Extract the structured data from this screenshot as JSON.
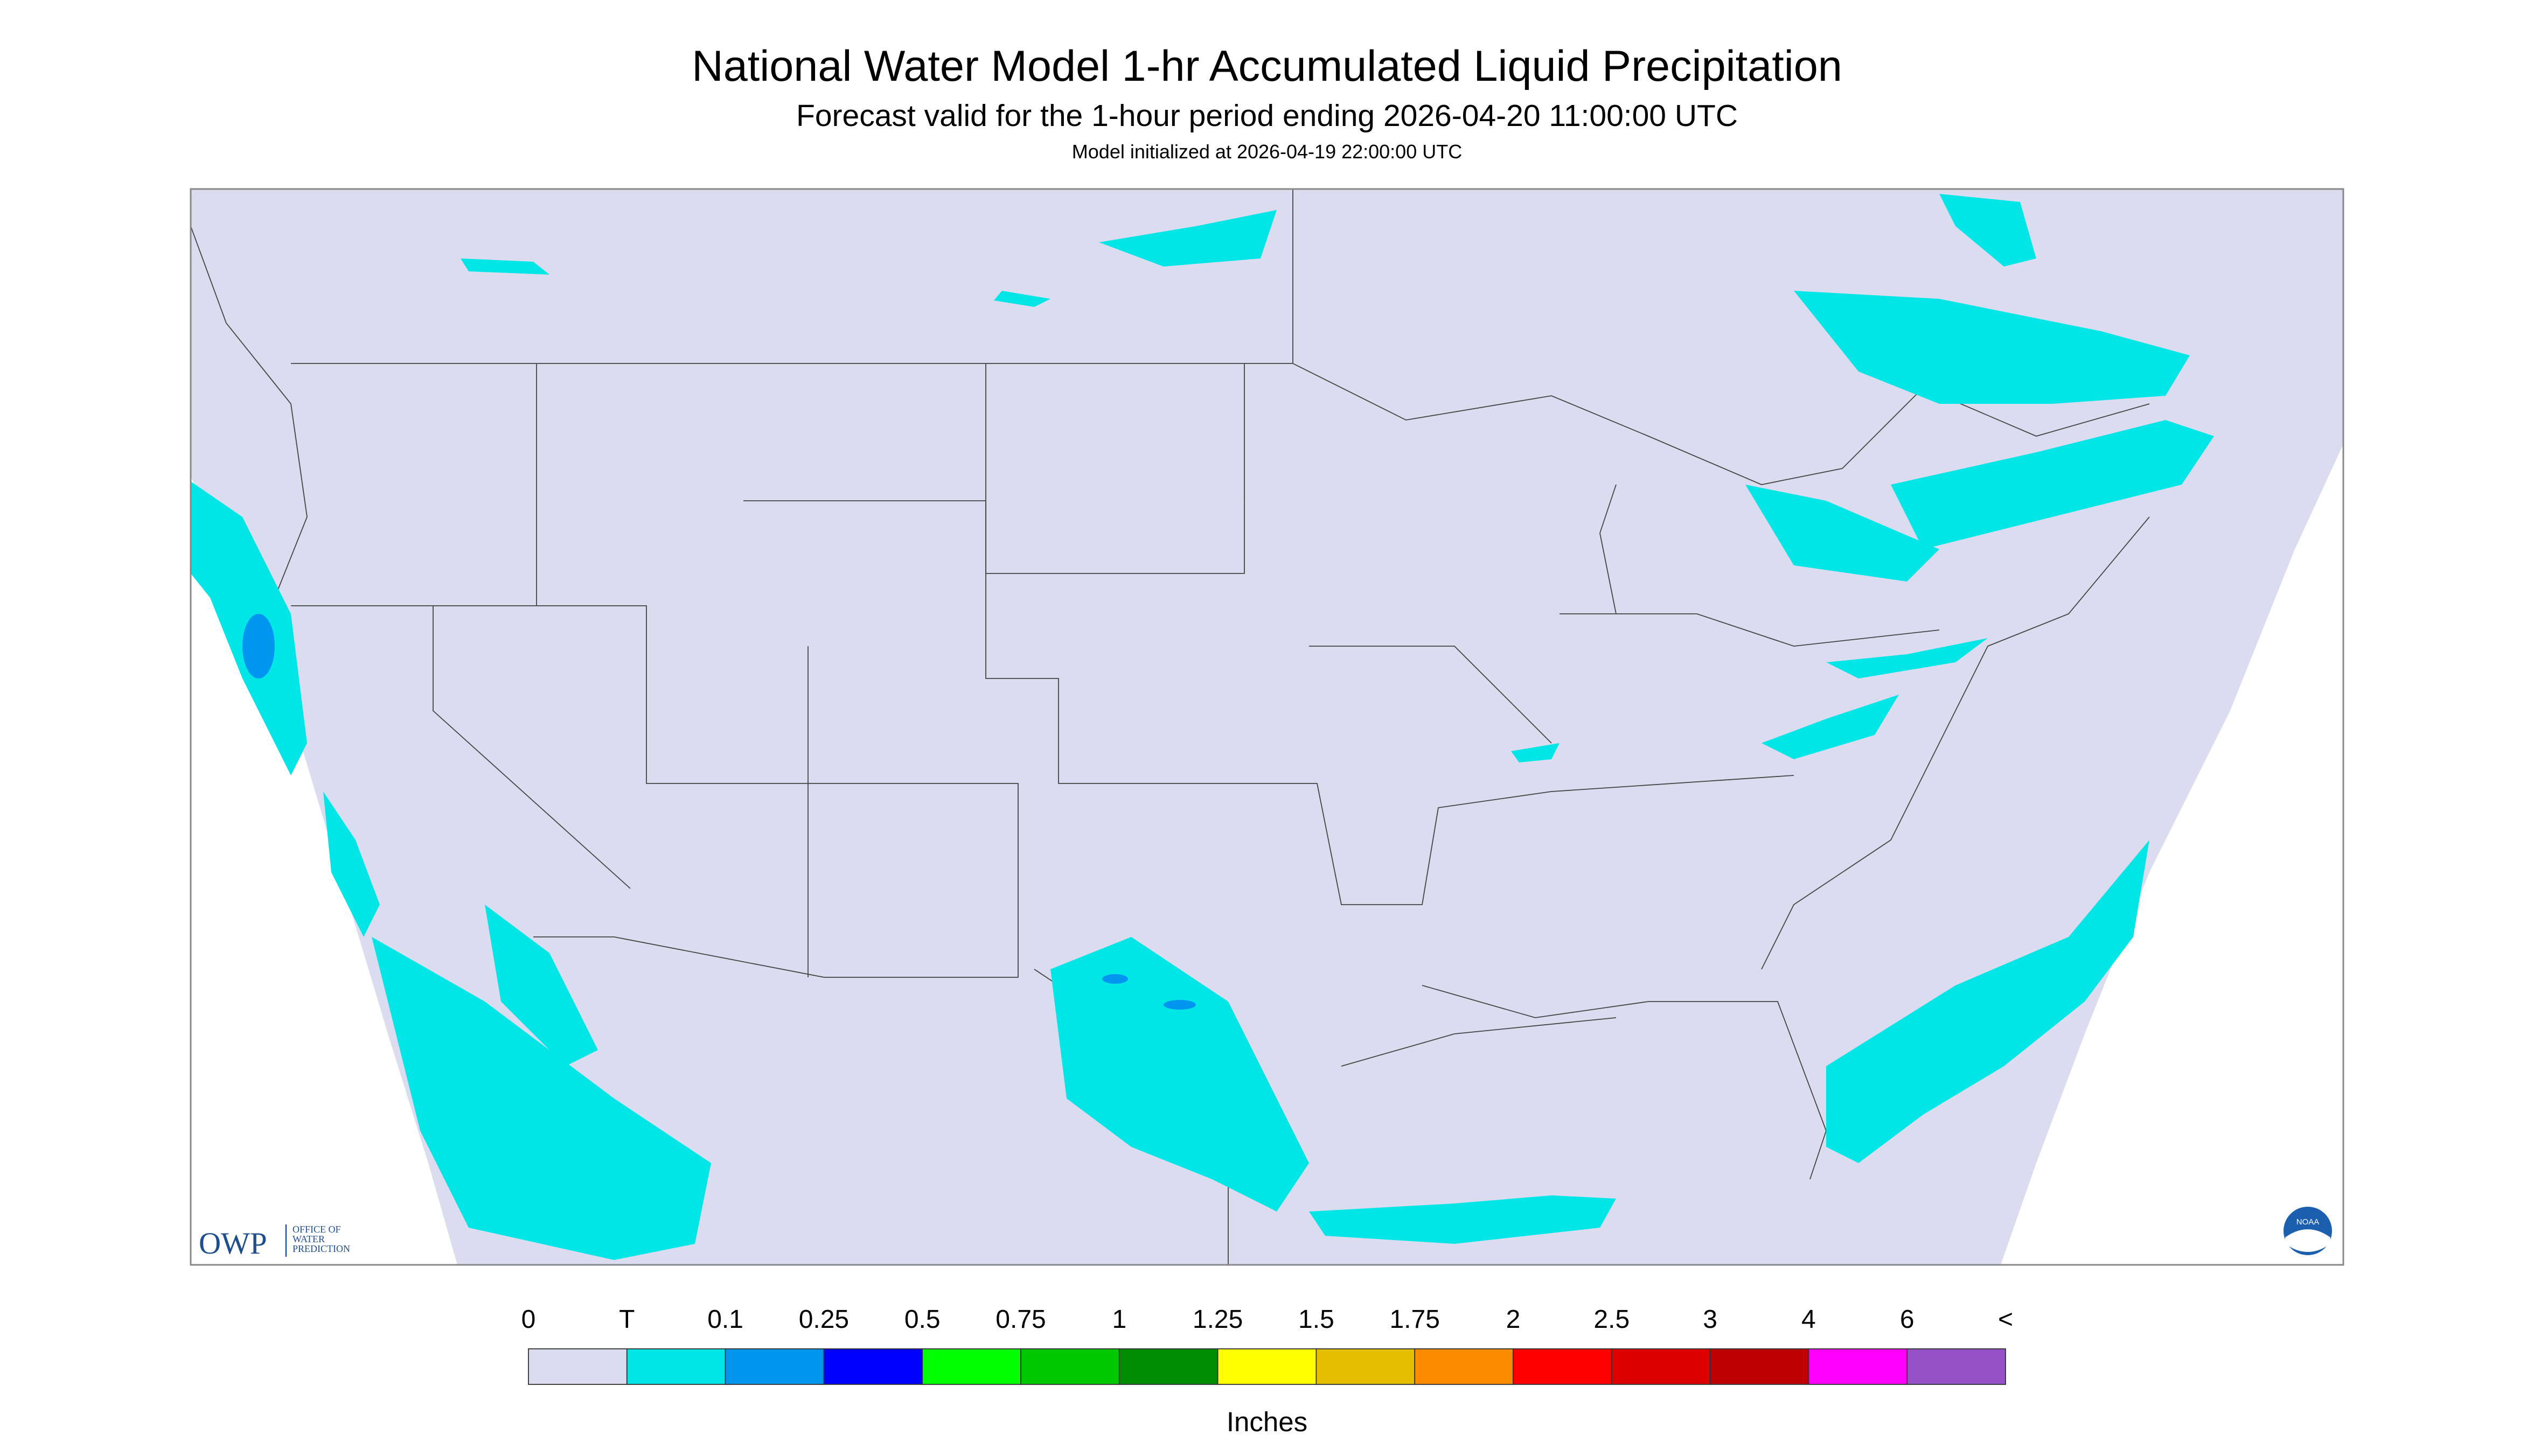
{
  "header": {
    "title": "National Water Model 1-hr Accumulated Liquid Precipitation",
    "subtitle": "Forecast valid for the 1-hour period ending 2026-04-20 11:00:00 UTC",
    "note": "Model initialized at 2026-04-19 22:00:00 UTC"
  },
  "legend": {
    "labels": [
      "0",
      "T",
      "0.1",
      "0.25",
      "0.5",
      "0.75",
      "1",
      "1.25",
      "1.5",
      "1.75",
      "2",
      "2.5",
      "3",
      "4",
      "6",
      "<"
    ],
    "colors": [
      "#dcdcf0",
      "#00e6e6",
      "#0096f0",
      "#0000ff",
      "#00ff00",
      "#00c800",
      "#008c00",
      "#ffff00",
      "#e6be00",
      "#ff8c00",
      "#ff0000",
      "#dc0000",
      "#be0000",
      "#ff00ff",
      "#9650c8"
    ],
    "unit": "Inches"
  },
  "logos": {
    "owp": "OWP",
    "owp_text": [
      "OFFICE OF",
      "WATER",
      "PREDICTION"
    ],
    "noaa": "NOAA"
  }
}
